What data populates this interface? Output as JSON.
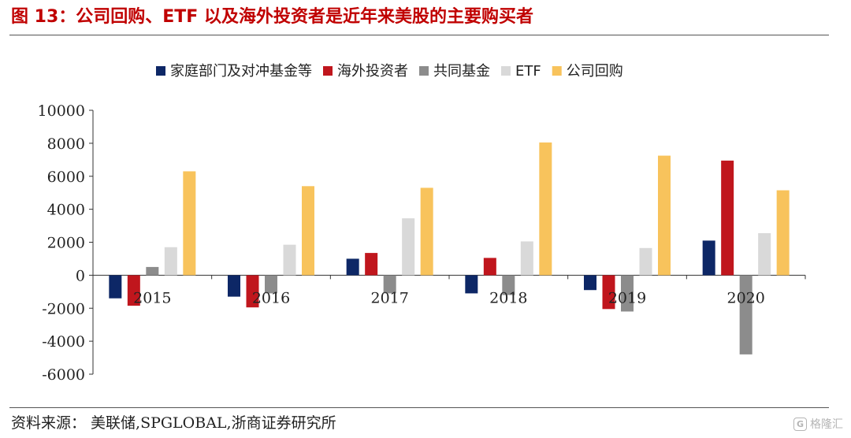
{
  "header": {
    "title": "图 13：公司回购、ETF 以及海外投资者是近年来美股的主要购买者"
  },
  "footer": {
    "source": "资料来源：  美联储,SPGLOBAL,浙商证券研究所",
    "watermark": "格隆汇"
  },
  "chart_data": {
    "type": "bar",
    "categories": [
      "2015",
      "2016",
      "2017",
      "2018",
      "2019",
      "2020"
    ],
    "series": [
      {
        "name": "家庭部门及对冲基金等",
        "color": "#0d2766",
        "values": [
          -1400,
          -1300,
          1000,
          -1100,
          -900,
          2100
        ]
      },
      {
        "name": "海外投资者",
        "color": "#c0161d",
        "values": [
          -1850,
          -1950,
          1350,
          1050,
          -2050,
          6950
        ]
      },
      {
        "name": "共同基金",
        "color": "#8c8c8c",
        "values": [
          500,
          -1100,
          -1100,
          -1200,
          -2200,
          -4800
        ]
      },
      {
        "name": "ETF",
        "color": "#d9d9d9",
        "values": [
          1700,
          1850,
          3450,
          2050,
          1650,
          2550
        ]
      },
      {
        "name": "公司回购",
        "color": "#f8c35c",
        "values": [
          6300,
          5400,
          5300,
          8050,
          7250,
          5150
        ]
      }
    ],
    "yticks": [
      "10000",
      "8000",
      "6000",
      "4000",
      "2000",
      "0",
      "-2000",
      "-4000",
      "-6000"
    ],
    "ylim": [
      -6000,
      10000
    ],
    "legend_position": "top",
    "grid": false
  }
}
